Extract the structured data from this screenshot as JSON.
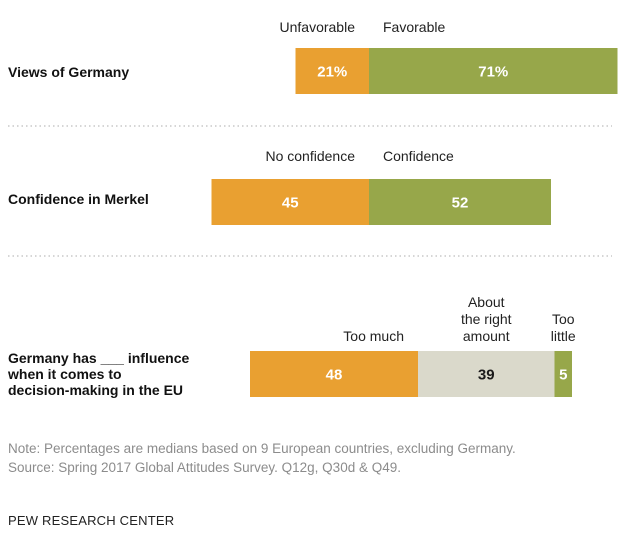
{
  "colors": {
    "unfavorable": "#e9a031",
    "favorable": "#97a74a",
    "neutral": "#dad9cb",
    "bar_label_light": "#ffffff",
    "bar_label_dark": "#1a1a1a"
  },
  "chart_data": {
    "type": "bar",
    "orientation": "horizontal",
    "stacked": true,
    "rows": [
      {
        "label": "Views of Germany",
        "segments": [
          {
            "name": "Unfavorable",
            "value": 21,
            "display": "21%",
            "color_key": "unfavorable"
          },
          {
            "name": "Favorable",
            "value": 71,
            "display": "71%",
            "color_key": "favorable"
          }
        ]
      },
      {
        "label": "Confidence in Merkel",
        "segments": [
          {
            "name": "No confidence",
            "value": 45,
            "display": "45",
            "color_key": "unfavorable"
          },
          {
            "name": "Confidence",
            "value": 52,
            "display": "52",
            "color_key": "favorable"
          }
        ]
      },
      {
        "label": "Germany has ___ influence when it comes to decision-making in the EU",
        "label_lines": [
          "Germany has ___ influence",
          "when it comes to",
          "decision-making in the EU"
        ],
        "segments": [
          {
            "name": "Too much",
            "value": 48,
            "display": "48",
            "color_key": "unfavorable"
          },
          {
            "name": "About the right amount",
            "name_lines": [
              "About",
              "the right",
              "amount"
            ],
            "value": 39,
            "display": "39",
            "color_key": "neutral"
          },
          {
            "name": "Too little",
            "name_lines": [
              "Too",
              "little"
            ],
            "value": 5,
            "display": "5",
            "color_key": "favorable"
          }
        ]
      }
    ]
  },
  "footer": {
    "note": "Note: Percentages are medians based on 9 European countries, excluding Germany.",
    "source": "Source: Spring 2017 Global Attitudes Survey. Q12g, Q30d & Q49.",
    "brand": "PEW RESEARCH CENTER"
  }
}
